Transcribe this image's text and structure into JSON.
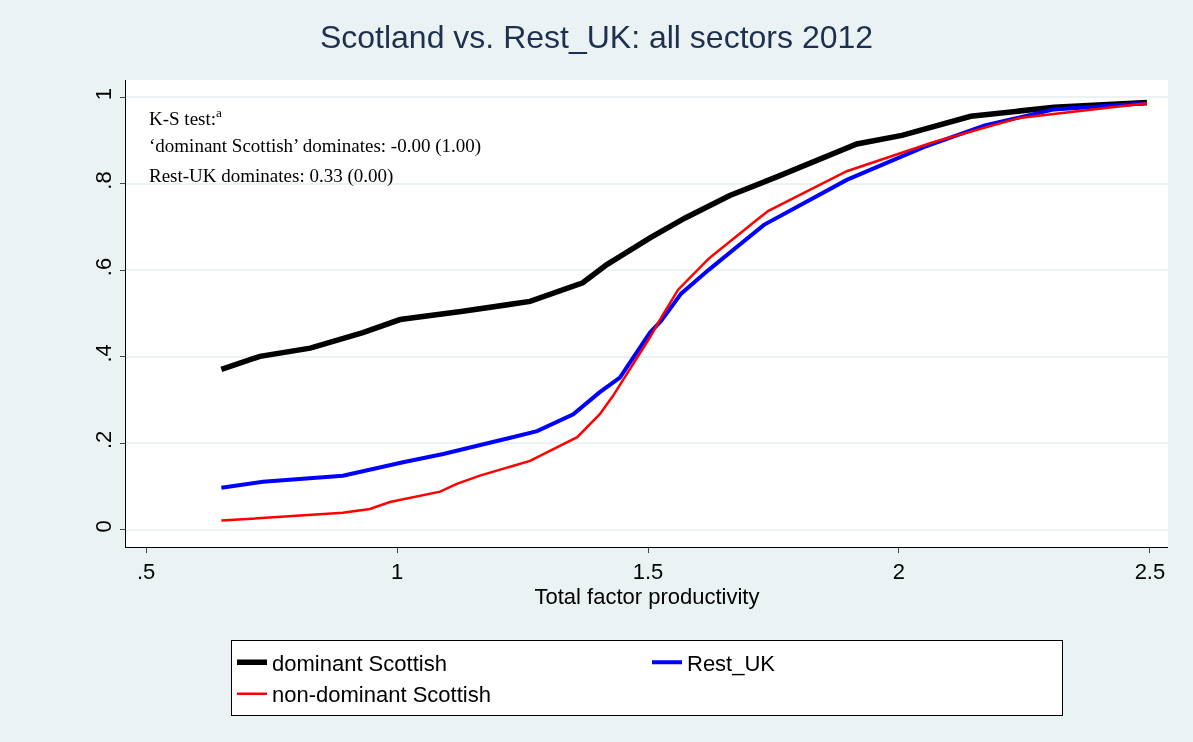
{
  "chart_data": {
    "type": "line",
    "title": "Scotland vs. Rest_UK: all sectors 2012",
    "xlabel": "Total factor productivity",
    "xlim": [
      0.46,
      2.536
    ],
    "xticks": [
      {
        "value": 0.5,
        "label": ".5"
      },
      1,
      1.5,
      2,
      2.5
    ],
    "ylim": [
      -0.04,
      1.04
    ],
    "yticks": [
      0,
      {
        "value": 0.2,
        "label": ".2"
      },
      {
        "value": 0.4,
        "label": ".4"
      },
      {
        "value": 0.6,
        "label": ".6"
      },
      {
        "value": 0.8,
        "label": ".8"
      },
      1
    ],
    "grid": "y",
    "legend": "bottom",
    "line_style": "solid",
    "marker": "none",
    "annotations": [
      "K-S test:$^{a}$",
      "‘dominant Scottish’ dominates: -0.00 (1.00)",
      "Rest-UK dominates: 0.33 (0.00)"
    ],
    "series": [
      {
        "name": "dominant Scottish",
        "color": "#000000",
        "x": [
          0.65,
          0.727,
          0.827,
          0.932,
          1.006,
          1.131,
          1.265,
          1.37,
          1.418,
          1.504,
          1.574,
          1.663,
          1.759,
          1.916,
          2.006,
          2.143,
          2.309,
          2.494
        ],
        "values": [
          0.371,
          0.401,
          0.42,
          0.456,
          0.486,
          0.505,
          0.528,
          0.571,
          0.613,
          0.675,
          0.721,
          0.773,
          0.817,
          0.892,
          0.912,
          0.956,
          0.977,
          0.988
        ]
      },
      {
        "name": "Rest_UK",
        "color": "#0000ff",
        "x": [
          0.65,
          0.733,
          0.892,
          1.012,
          1.092,
          1.199,
          1.279,
          1.351,
          1.404,
          1.444,
          1.504,
          1.526,
          1.566,
          1.621,
          1.731,
          1.896,
          2.048,
          2.171,
          2.309,
          2.494
        ],
        "values": [
          0.097,
          0.111,
          0.125,
          0.156,
          0.175,
          0.205,
          0.228,
          0.267,
          0.318,
          0.352,
          0.456,
          0.483,
          0.546,
          0.601,
          0.705,
          0.809,
          0.884,
          0.935,
          0.972,
          0.986
        ]
      },
      {
        "name": "non-dominant Scottish",
        "color": "#ff0000",
        "x": [
          0.65,
          0.892,
          0.946,
          0.986,
          1.086,
          1.119,
          1.165,
          1.265,
          1.359,
          1.404,
          1.43,
          1.504,
          1.526,
          1.56,
          1.621,
          1.739,
          1.896,
          2.068,
          2.239,
          2.494
        ],
        "values": [
          0.021,
          0.039,
          0.048,
          0.064,
          0.088,
          0.106,
          0.125,
          0.159,
          0.214,
          0.267,
          0.309,
          0.445,
          0.49,
          0.555,
          0.627,
          0.737,
          0.829,
          0.896,
          0.952,
          0.986
        ]
      }
    ]
  }
}
